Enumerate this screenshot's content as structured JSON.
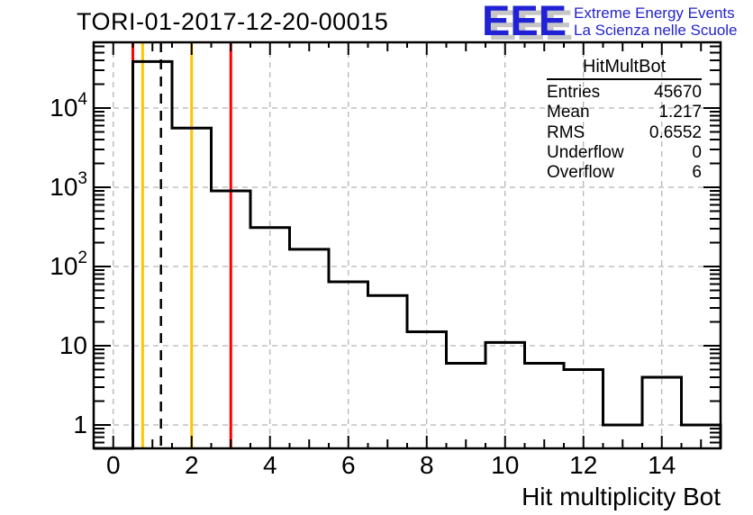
{
  "title": "TORI-01-2017-12-20-00015",
  "logo": {
    "acronym": "EEE",
    "line1": "Extreme Energy Events",
    "line2": "La Scienza nelle Scuole",
    "acronym_color": "#2121d5",
    "text_color": "#2424cc",
    "shadow_color": "#c6c6c6"
  },
  "stats": {
    "title": "HitMultBot",
    "rows": [
      {
        "label": "Entries",
        "value": "45670"
      },
      {
        "label": "Mean",
        "value": "1.217"
      },
      {
        "label": "RMS",
        "value": "0.6552"
      },
      {
        "label": "Underflow",
        "value": "0"
      },
      {
        "label": "Overflow",
        "value": "6"
      }
    ]
  },
  "xaxis_title": "Hit multiplicity Bot",
  "chart_data": {
    "type": "bar",
    "subtype": "step-histogram",
    "title": "TORI-01-2017-12-20-00015",
    "xlabel": "Hit multiplicity Bot",
    "ylabel": "",
    "y_scale": "log",
    "grid": true,
    "x_range": [
      -0.5,
      15.5
    ],
    "y_range": [
      0.5,
      67000
    ],
    "bin_centers": [
      0,
      1,
      2,
      3,
      4,
      5,
      6,
      7,
      8,
      9,
      10,
      11,
      12,
      13,
      14,
      15
    ],
    "counts": [
      0,
      38600,
      5580,
      900,
      310,
      165,
      64,
      43,
      15,
      6,
      11,
      6,
      5,
      1,
      4,
      1
    ],
    "x_ticks": [
      {
        "v": 0,
        "label": "0"
      },
      {
        "v": 2,
        "label": "2"
      },
      {
        "v": 4,
        "label": "4"
      },
      {
        "v": 6,
        "label": "6"
      },
      {
        "v": 8,
        "label": "8"
      },
      {
        "v": 10,
        "label": "10"
      },
      {
        "v": 12,
        "label": "12"
      },
      {
        "v": 14,
        "label": "14"
      }
    ],
    "y_ticks": [
      {
        "v": 1,
        "label": "1"
      },
      {
        "v": 10,
        "label": "10"
      },
      {
        "v": 100,
        "label": "10",
        "exp": "2"
      },
      {
        "v": 1000,
        "label": "10",
        "exp": "3"
      },
      {
        "v": 10000,
        "label": "10",
        "exp": "4"
      }
    ],
    "marker_lines": [
      {
        "x": 0.5,
        "color": "#ff0000",
        "style": "solid",
        "name": "red-line-low"
      },
      {
        "x": 0.75,
        "color": "#ffc500",
        "style": "solid",
        "name": "gold-line-low"
      },
      {
        "x": 1.217,
        "color": "#000000",
        "style": "dashed",
        "name": "mean-line"
      },
      {
        "x": 2,
        "color": "#ffc500",
        "style": "solid",
        "name": "gold-line-high"
      },
      {
        "x": 3,
        "color": "#ff0000",
        "style": "solid",
        "name": "red-line-high"
      }
    ],
    "line_color": "#000000",
    "grid_color": "#a0a0a0",
    "legend_position": "none"
  }
}
